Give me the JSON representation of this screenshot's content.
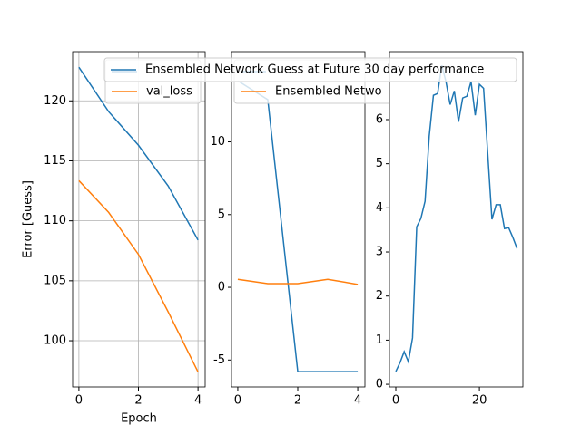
{
  "chart_data": [
    {
      "type": "line",
      "x_label": "Epoch",
      "y_label": "Error [Guess]",
      "grid": true,
      "legend": "upper right",
      "x": [
        0,
        1,
        2,
        3,
        4
      ],
      "xlim": [
        -0.21,
        4.24
      ],
      "xticks": [
        0,
        2,
        4
      ],
      "ylim": [
        96.15,
        124.1
      ],
      "yticks": [
        100,
        105,
        110,
        115,
        120
      ],
      "series": [
        {
          "color": "#1f77b4",
          "values": [
            122.8,
            119.1,
            116.3,
            112.9,
            108.4
          ]
        },
        {
          "name": "val_loss",
          "color": "#ff7f0e",
          "values": [
            113.35,
            110.7,
            107.2,
            102.4,
            97.4
          ]
        }
      ]
    },
    {
      "type": "line",
      "grid": false,
      "legend": "upper right",
      "x": [
        0,
        1,
        2,
        3,
        4
      ],
      "xlim": [
        -0.21,
        4.24
      ],
      "xticks": [
        0,
        2,
        4
      ],
      "ylim": [
        -6.85,
        16.2
      ],
      "yticks": [
        -5,
        0,
        5,
        10
      ],
      "series": [
        {
          "color": "#1f77b4",
          "values": [
            14.2,
            12.9,
            -5.8,
            -5.8,
            -5.8
          ]
        },
        {
          "name": "Ensembled Netwo",
          "color": "#ff7f0e",
          "values": [
            0.55,
            0.25,
            0.25,
            0.55,
            0.2
          ]
        }
      ]
    },
    {
      "type": "line",
      "grid": false,
      "legend": "upper right",
      "x": [
        0,
        1,
        2,
        3,
        4,
        5,
        6,
        7,
        8,
        9,
        10,
        11,
        12,
        13,
        14,
        15,
        16,
        17,
        18,
        19,
        20,
        21,
        22,
        23,
        24,
        25,
        26,
        27,
        28,
        29
      ],
      "xlim": [
        -1.52,
        30.4
      ],
      "xticks": [
        0,
        20
      ],
      "ylim": [
        -0.06,
        7.54
      ],
      "yticks": [
        0,
        1,
        2,
        3,
        4,
        5,
        6
      ],
      "series": [
        {
          "name": "Ensembled Network Guess at Future 30 day performance",
          "color": "#1f77b4",
          "values": [
            0.29,
            0.49,
            0.74,
            0.51,
            1.05,
            3.57,
            3.76,
            4.15,
            5.63,
            6.55,
            6.59,
            7.23,
            6.86,
            6.34,
            6.65,
            5.95,
            6.49,
            6.53,
            6.86,
            6.1,
            6.8,
            6.71,
            5.22,
            3.74,
            4.07,
            4.07,
            3.53,
            3.55,
            3.33,
            3.08
          ]
        }
      ]
    }
  ]
}
